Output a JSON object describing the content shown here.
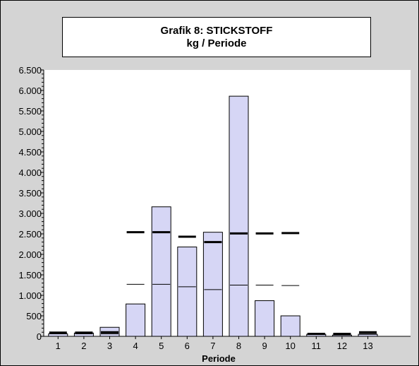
{
  "chart_data": {
    "type": "bar",
    "title": "Grafik 8: STICKSTOFF",
    "subtitle": "kg / Periode",
    "xlabel": "Periode",
    "ylabel": "",
    "categories": [
      "1",
      "2",
      "3",
      "4",
      "5",
      "6",
      "7",
      "8",
      "9",
      "10",
      "11",
      "12",
      "13"
    ],
    "ylim": [
      0,
      6500
    ],
    "yticks": [
      0,
      500,
      1000,
      1500,
      2000,
      2500,
      3000,
      3500,
      4000,
      4500,
      5000,
      5500,
      6000,
      6500
    ],
    "ytick_labels": [
      "0",
      "500",
      "1.000",
      "1.500",
      "2.000",
      "2.500",
      "3.000",
      "3.500",
      "4.000",
      "4.500",
      "5.000",
      "5.500",
      "6.000",
      "6.500"
    ],
    "series": [
      {
        "values": [
          60,
          80,
          220,
          790,
          3160,
          2180,
          2540,
          5860,
          870,
          500,
          50,
          30,
          50
        ]
      },
      {
        "values": [
          90,
          90,
          100,
          2540,
          2540,
          2430,
          2300,
          2510,
          2510,
          2520,
          60,
          60,
          100
        ]
      },
      {
        "values": [
          60,
          60,
          60,
          1270,
          1270,
          1210,
          1140,
          1250,
          1250,
          1240,
          40,
          40,
          60
        ]
      }
    ],
    "colors": {
      "bar_fill": "#d6d6f5",
      "bar_stroke": "#000000",
      "plot_bg": "#ffffff",
      "frame_bg": "#d4d4d4"
    },
    "grid": false
  }
}
